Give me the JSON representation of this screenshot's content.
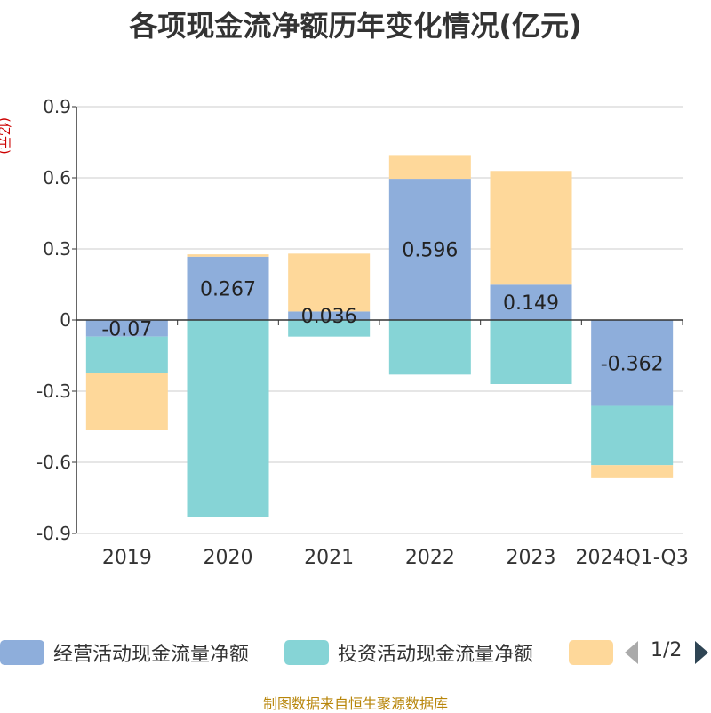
{
  "title": "各项现金流净额历年变化情况(亿元)",
  "unit_label": "(亿元)",
  "legend": {
    "items": [
      {
        "label": "经营活动现金流量净额",
        "color": "#8eaedb"
      },
      {
        "label": "投资活动现金流量净额",
        "color": "#86d4d6"
      },
      {
        "label": "",
        "color": "#fed89a"
      }
    ],
    "page_indicator": "1/2"
  },
  "source": "制图数据来自恒生聚源数据库",
  "chart_data": {
    "type": "bar",
    "stacked": true,
    "categories": [
      "2019",
      "2020",
      "2021",
      "2022",
      "2023",
      "2024Q1-Q3"
    ],
    "ylim": [
      -0.9,
      0.9
    ],
    "yticks": [
      "0.9",
      "0.6",
      "0.3",
      "0",
      "-0.3",
      "-0.6",
      "-0.9"
    ],
    "grid": true,
    "legend_position": "bottom",
    "series": [
      {
        "name": "经营活动现金流量净额",
        "color": "#8eaedb",
        "values": [
          -0.07,
          0.267,
          0.036,
          0.596,
          0.149,
          -0.362
        ],
        "labels": [
          "-0.07",
          "0.267",
          "0.036",
          "0.596",
          "0.149",
          "-0.362"
        ]
      },
      {
        "name": "投资活动现金流量净额",
        "color": "#86d4d6",
        "values": [
          -0.155,
          -0.83,
          -0.07,
          -0.23,
          -0.27,
          -0.25
        ]
      },
      {
        "color": "#fed89a",
        "values": [
          -0.24,
          0.01,
          0.244,
          0.1,
          0.48,
          -0.055
        ]
      }
    ]
  }
}
